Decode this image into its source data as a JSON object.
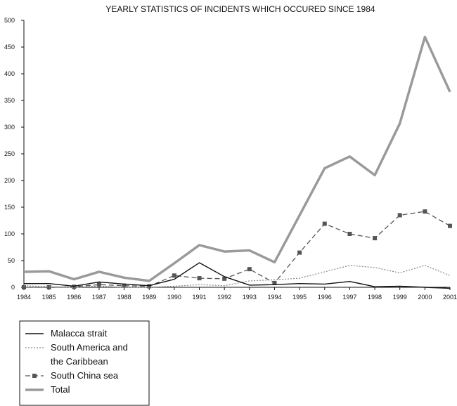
{
  "chart_data": {
    "type": "line",
    "title": "YEARLY STATISTICS OF INCIDENTS WHICH OCCURED SINCE 1984",
    "xlabel": "",
    "ylabel": "",
    "x": [
      "1984",
      "1985",
      "1986",
      "1987",
      "1988",
      "1989",
      "1990",
      "1991",
      "1992",
      "1993",
      "1994",
      "1995",
      "1996",
      "1997",
      "1998",
      "1999",
      "2000",
      "2001"
    ],
    "ylim": [
      0,
      500
    ],
    "yticks": [
      0,
      50,
      100,
      150,
      200,
      250,
      300,
      350,
      400,
      450,
      500
    ],
    "grid": false,
    "legend_position": "bottom-left",
    "series": [
      {
        "name": "Malacca strait",
        "values": [
          7,
          7,
          2,
          10,
          6,
          3,
          15,
          46,
          20,
          4,
          5,
          7,
          6,
          11,
          1,
          2,
          0,
          -2
        ],
        "color": "#111111",
        "style": "solid"
      },
      {
        "name": "South America and the Caribbean",
        "values": [
          3,
          1,
          0,
          2,
          0,
          0,
          2,
          5,
          3,
          12,
          14,
          17,
          29,
          41,
          37,
          27,
          41,
          22
        ],
        "color": "#888888",
        "style": "dotted"
      },
      {
        "name": "South China sea",
        "values": [
          0,
          0,
          1,
          5,
          3,
          2,
          22,
          17,
          16,
          34,
          8,
          65,
          119,
          100,
          92,
          135,
          142,
          115
        ],
        "color": "#555555",
        "style": "dashed-marker"
      },
      {
        "name": "Total",
        "values": [
          29,
          30,
          15,
          29,
          18,
          12,
          45,
          79,
          67,
          69,
          47,
          135,
          223,
          245,
          210,
          307,
          469,
          366
        ],
        "color": "#9a9a9a",
        "style": "thick"
      }
    ]
  }
}
